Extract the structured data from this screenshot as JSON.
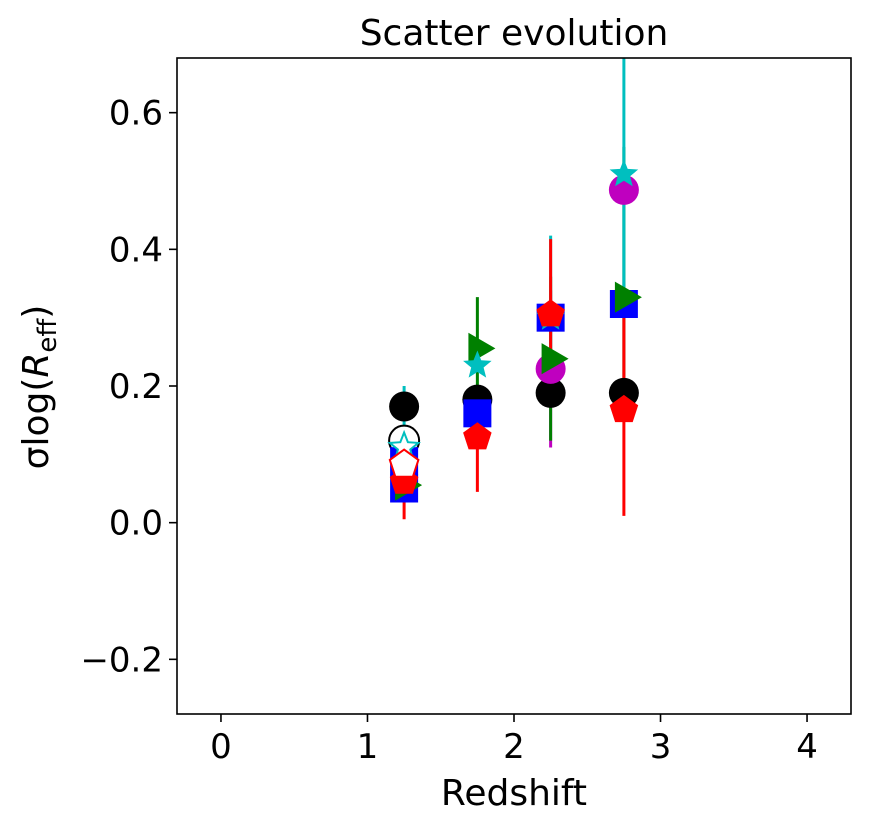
{
  "chart_data": {
    "type": "scatter",
    "title": "Scatter evolution",
    "xlabel": "Redshift",
    "ylabel": {
      "prefix": "σlog(",
      "var": "R",
      "sub": "eff",
      "suffix": ")"
    },
    "xlim": [
      -0.3,
      4.3
    ],
    "ylim": [
      -0.28,
      0.68
    ],
    "xticks": [
      0,
      1,
      2,
      3,
      4
    ],
    "xtick_labels": [
      "0",
      "1",
      "2",
      "3",
      "4"
    ],
    "yticks": [
      -0.2,
      0.0,
      0.2,
      0.4,
      0.6
    ],
    "ytick_labels": [
      "−0.2",
      "0.0",
      "0.2",
      "0.4",
      "0.6"
    ],
    "grid": false,
    "legend": "none",
    "series": [
      {
        "marker": "circle",
        "color": "#000000",
        "filled": true,
        "points": [
          {
            "x": 1.25,
            "y": 0.17
          },
          {
            "x": 1.75,
            "y": 0.18
          },
          {
            "x": 2.25,
            "y": 0.19
          },
          {
            "x": 2.75,
            "y": 0.19
          }
        ]
      },
      {
        "marker": "circle",
        "color": "#000000",
        "filled": false,
        "points": [
          {
            "x": 1.25,
            "y": 0.12
          }
        ]
      },
      {
        "marker": "square",
        "color": "#0000ff",
        "filled": true,
        "errcolor": "#0000ff",
        "points": [
          {
            "x": 1.25,
            "y": 0.09
          },
          {
            "x": 1.25,
            "y": 0.05
          },
          {
            "x": 1.75,
            "y": 0.16
          },
          {
            "x": 2.25,
            "y": 0.3
          },
          {
            "x": 2.75,
            "y": 0.32
          }
        ]
      },
      {
        "marker": "circle",
        "color": "#bf00bf",
        "filled": true,
        "errcolor": "#bf00bf",
        "points": [
          {
            "x": 2.25,
            "y": 0.225,
            "lo": 0.11,
            "hi": 0.34
          },
          {
            "x": 2.75,
            "y": 0.487
          }
        ]
      },
      {
        "marker": "triangle-right",
        "color": "#008000",
        "filled": true,
        "errcolor": "#008000",
        "points": [
          {
            "x": 1.25,
            "y": 0.055
          },
          {
            "x": 1.75,
            "y": 0.255,
            "lo": 0.18,
            "hi": 0.33
          },
          {
            "x": 2.25,
            "y": 0.24,
            "lo": 0.12,
            "hi": 0.36
          },
          {
            "x": 2.75,
            "y": 0.33,
            "lo": 0.2,
            "hi": 0.55
          }
        ]
      },
      {
        "marker": "star",
        "color": "#00bfbf",
        "filled": true,
        "errcolor": "#00bfbf",
        "points": [
          {
            "x": 1.75,
            "y": 0.23
          },
          {
            "x": 2.25,
            "y": 0.3,
            "lo": 0.19,
            "hi": 0.42
          },
          {
            "x": 2.75,
            "y": 0.51,
            "lo": 0.32,
            "hi": 0.7
          }
        ]
      },
      {
        "marker": "star",
        "color": "#00bfbf",
        "filled": false,
        "errcolor": "#00bfbf",
        "points": [
          {
            "x": 1.25,
            "y": 0.11,
            "lo": 0.04,
            "hi": 0.2
          }
        ]
      },
      {
        "marker": "pentagon",
        "color": "#ff0000",
        "filled": true,
        "errcolor": "#ff0000",
        "points": [
          {
            "x": 1.25,
            "y": 0.06,
            "lo": 0.005,
            "hi": 0.12
          },
          {
            "x": 1.75,
            "y": 0.125,
            "lo": 0.045,
            "hi": 0.2
          },
          {
            "x": 2.25,
            "y": 0.305,
            "lo": 0.2,
            "hi": 0.415
          },
          {
            "x": 2.75,
            "y": 0.165,
            "lo": 0.01,
            "hi": 0.33
          }
        ]
      },
      {
        "marker": "pentagon",
        "color": "#ff0000",
        "filled": false,
        "errcolor": "#ff0000",
        "points": [
          {
            "x": 1.25,
            "y": 0.085
          }
        ]
      }
    ]
  }
}
